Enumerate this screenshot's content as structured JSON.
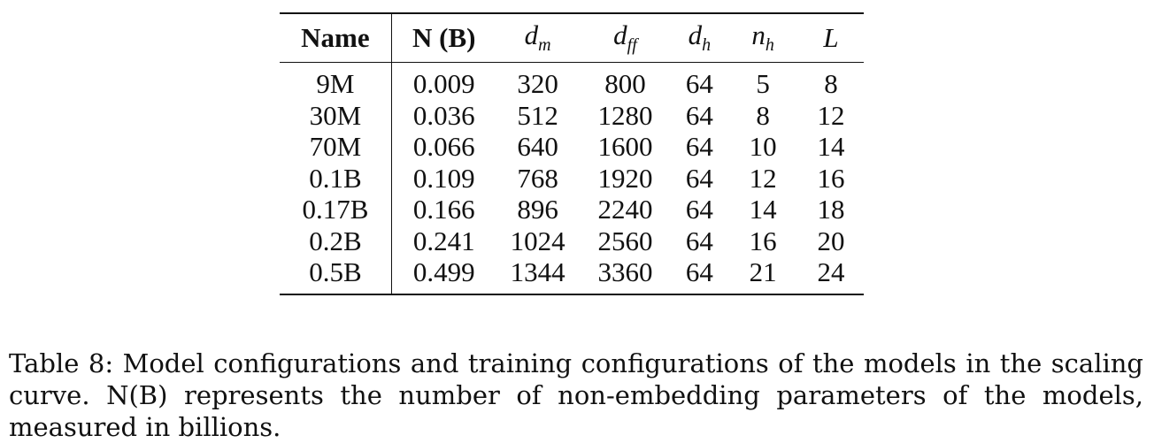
{
  "table": {
    "headers": {
      "name": "Name",
      "n_b": "N (B)",
      "d_m": {
        "base": "d",
        "sub": "m"
      },
      "d_ff": {
        "base": "d",
        "sub": "ff"
      },
      "d_h": {
        "base": "d",
        "sub": "h"
      },
      "n_h": {
        "base": "n",
        "sub": "h"
      },
      "L": "L"
    },
    "rows": [
      {
        "name": "9M",
        "n_b": "0.009",
        "d_m": "320",
        "d_ff": "800",
        "d_h": "64",
        "n_h": "5",
        "L": "8"
      },
      {
        "name": "30M",
        "n_b": "0.036",
        "d_m": "512",
        "d_ff": "1280",
        "d_h": "64",
        "n_h": "8",
        "L": "12"
      },
      {
        "name": "70M",
        "n_b": "0.066",
        "d_m": "640",
        "d_ff": "1600",
        "d_h": "64",
        "n_h": "10",
        "L": "14"
      },
      {
        "name": "0.1B",
        "n_b": "0.109",
        "d_m": "768",
        "d_ff": "1920",
        "d_h": "64",
        "n_h": "12",
        "L": "16"
      },
      {
        "name": "0.17B",
        "n_b": "0.166",
        "d_m": "896",
        "d_ff": "2240",
        "d_h": "64",
        "n_h": "14",
        "L": "18"
      },
      {
        "name": "0.2B",
        "n_b": "0.241",
        "d_m": "1024",
        "d_ff": "2560",
        "d_h": "64",
        "n_h": "16",
        "L": "20"
      },
      {
        "name": "0.5B",
        "n_b": "0.499",
        "d_m": "1344",
        "d_ff": "3360",
        "d_h": "64",
        "n_h": "21",
        "L": "24"
      }
    ]
  },
  "caption": "Table 8: Model configurations and training configurations of the models in the scaling curve. N(B) represents the number of non-embedding parameters of the models, measured in billions."
}
